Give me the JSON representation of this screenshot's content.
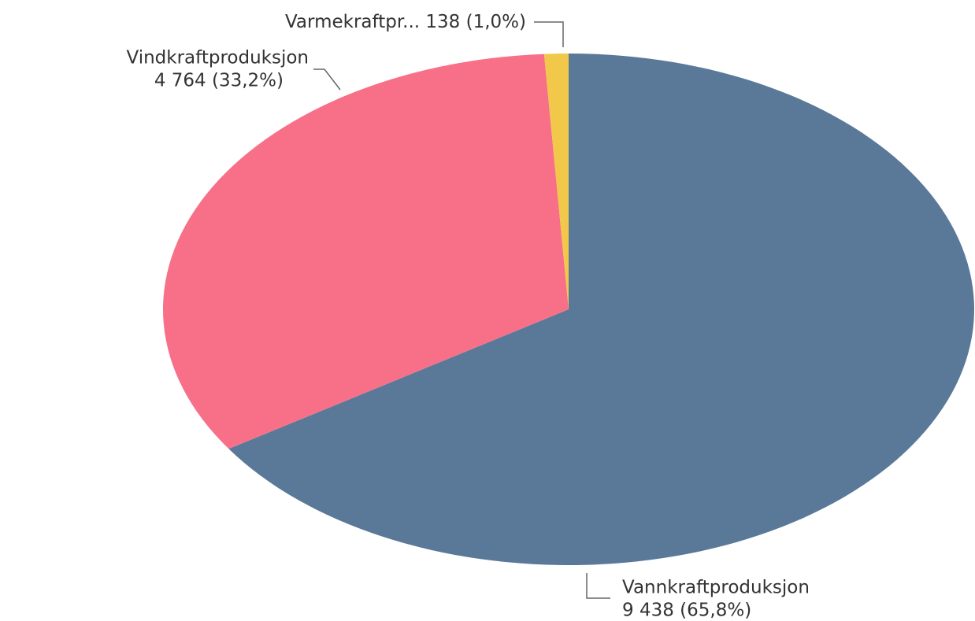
{
  "chart_data": {
    "type": "pie",
    "categories": [
      "Vannkraftproduksjon",
      "Vindkraftproduksjon",
      "Varmekraftpr..."
    ],
    "values": [
      9438,
      4764,
      138
    ],
    "value_labels": [
      "9 438 (65,8%)",
      "4 764 (33,2%)",
      "138 (1,0%)"
    ],
    "colors": [
      "#5a7999",
      "#f77088",
      "#f2c84b"
    ]
  }
}
